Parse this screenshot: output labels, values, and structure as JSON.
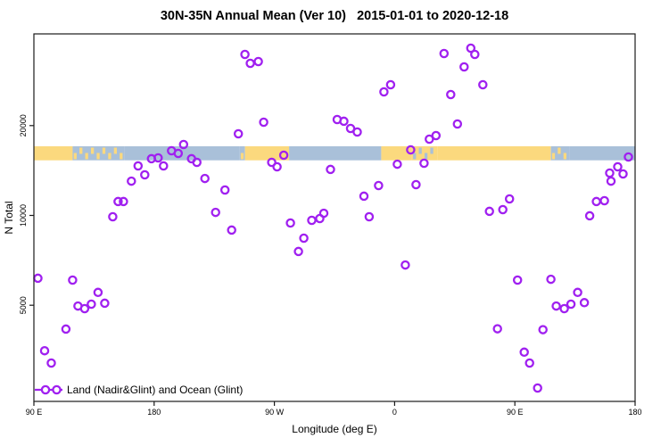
{
  "title": "30N-35N Annual Mean (Ver 10)   2015-01-01 to 2020-12-18",
  "legend": {
    "label": "Land (Nadir&Glint) and Ocean (Glint)"
  },
  "colors": {
    "point": "#A020F0",
    "ocean": "#A9C0D9",
    "land": "#FBD97E",
    "axis": "#1a1a1a"
  },
  "chart_data": {
    "type": "scatter",
    "title": "30N-35N Annual Mean (Ver 10)   2015-01-01 to 2020-12-18",
    "xlabel": "Longitude (deg E)",
    "ylabel": "N Total",
    "x_axis": {
      "range": [
        90,
        540
      ],
      "ticks": [
        {
          "value": 90,
          "label": "90 E"
        },
        {
          "value": 180,
          "label": "180"
        },
        {
          "value": 270,
          "label": "90 W"
        },
        {
          "value": 360,
          "label": "0"
        },
        {
          "value": 450,
          "label": "90 E"
        },
        {
          "value": 540,
          "label": "180"
        }
      ]
    },
    "y_axis": {
      "scale": "log",
      "ticks": [
        {
          "value": 5000,
          "label": "5000"
        },
        {
          "value": 10000,
          "label": "10000"
        },
        {
          "value": 20000,
          "label": "20000"
        }
      ]
    },
    "map_band": {
      "value_range": [
        15300,
        17050
      ],
      "segments": [
        {
          "from": 90,
          "to": 119,
          "type": "land"
        },
        {
          "from": 119,
          "to": 158,
          "type": "islands"
        },
        {
          "from": 158,
          "to": 244,
          "type": "ocean"
        },
        {
          "from": 244,
          "to": 248,
          "type": "islands"
        },
        {
          "from": 248,
          "to": 281,
          "type": "land"
        },
        {
          "from": 281,
          "to": 350,
          "type": "ocean"
        },
        {
          "from": 350,
          "to": 373,
          "type": "land"
        },
        {
          "from": 373,
          "to": 392,
          "type": "coast"
        },
        {
          "from": 392,
          "to": 477,
          "type": "land"
        },
        {
          "from": 477,
          "to": 491,
          "type": "islands"
        },
        {
          "from": 491,
          "to": 540,
          "type": "ocean"
        }
      ]
    },
    "points": [
      [
        93,
        6160
      ],
      [
        98,
        3520
      ],
      [
        103,
        3200
      ],
      [
        114,
        4160
      ],
      [
        119,
        6070
      ],
      [
        123,
        4970
      ],
      [
        128,
        4870
      ],
      [
        133,
        5040
      ],
      [
        138,
        5520
      ],
      [
        143,
        5080
      ],
      [
        149,
        9900
      ],
      [
        153,
        11130
      ],
      [
        157,
        11130
      ],
      [
        163,
        13030
      ],
      [
        168,
        14650
      ],
      [
        173,
        13680
      ],
      [
        178,
        15490
      ],
      [
        183,
        15590
      ],
      [
        187,
        14650
      ],
      [
        193,
        16470
      ],
      [
        198,
        16130
      ],
      [
        202,
        17290
      ],
      [
        208,
        15490
      ],
      [
        212,
        15060
      ],
      [
        218,
        13300
      ],
      [
        226,
        10240
      ],
      [
        233,
        12170
      ],
      [
        238,
        8930
      ],
      [
        243,
        18770
      ],
      [
        248,
        34640
      ],
      [
        252,
        32340
      ],
      [
        258,
        32790
      ],
      [
        262,
        20530
      ],
      [
        268,
        15060
      ],
      [
        272,
        14550
      ],
      [
        277,
        15910
      ],
      [
        282,
        9430
      ],
      [
        288,
        7570
      ],
      [
        292,
        8390
      ],
      [
        298,
        9630
      ],
      [
        304,
        9760
      ],
      [
        307,
        10170
      ],
      [
        312,
        14260
      ],
      [
        317,
        20960
      ],
      [
        322,
        20680
      ],
      [
        327,
        19570
      ],
      [
        332,
        19030
      ],
      [
        337,
        11600
      ],
      [
        341,
        9900
      ],
      [
        348,
        12590
      ],
      [
        352,
        25940
      ],
      [
        357,
        27420
      ],
      [
        362,
        14850
      ],
      [
        368,
        6820
      ],
      [
        372,
        16590
      ],
      [
        376,
        12680
      ],
      [
        382,
        14960
      ],
      [
        386,
        18010
      ],
      [
        391,
        18520
      ],
      [
        397,
        34880
      ],
      [
        402,
        25410
      ],
      [
        407,
        20250
      ],
      [
        412,
        31460
      ],
      [
        417,
        36350
      ],
      [
        420,
        34640
      ],
      [
        426,
        27420
      ],
      [
        431,
        10320
      ],
      [
        437,
        4170
      ],
      [
        441,
        10460
      ],
      [
        446,
        11360
      ],
      [
        452,
        6070
      ],
      [
        457,
        3480
      ],
      [
        461,
        3200
      ],
      [
        467,
        2640
      ],
      [
        471,
        4140
      ],
      [
        477,
        6110
      ],
      [
        481,
        4970
      ],
      [
        487,
        4870
      ],
      [
        492,
        5040
      ],
      [
        497,
        5520
      ],
      [
        502,
        5100
      ],
      [
        506,
        9970
      ],
      [
        511,
        11130
      ],
      [
        517,
        11200
      ],
      [
        521,
        13870
      ],
      [
        522,
        13030
      ],
      [
        527,
        14550
      ],
      [
        531,
        13770
      ],
      [
        535,
        15700
      ]
    ]
  }
}
